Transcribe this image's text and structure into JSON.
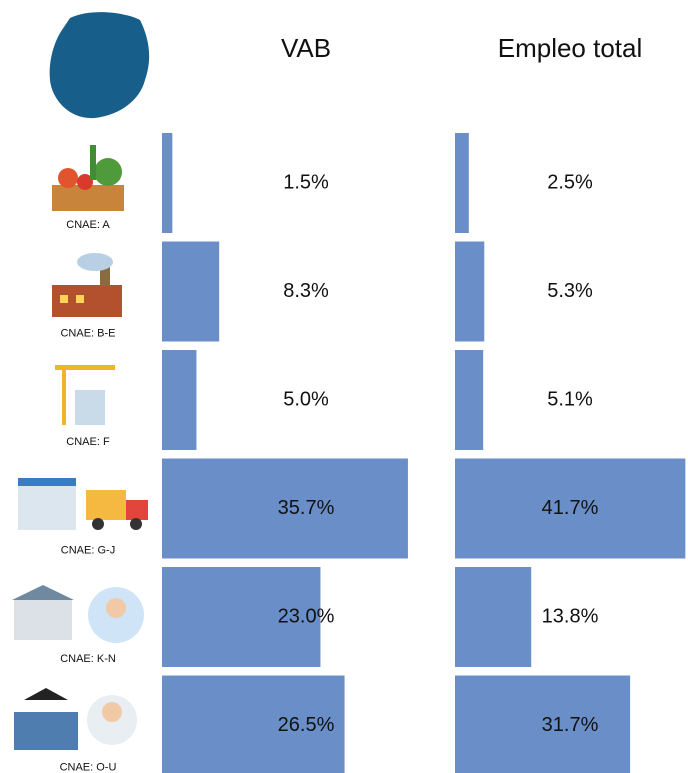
{
  "chart_data": {
    "type": "bar",
    "orientation": "horizontal",
    "color": "#6a8fc8",
    "categories": [
      "CNAE: A",
      "CNAE: B-E",
      "CNAE: F",
      "CNAE: G-J",
      "CNAE: K-N",
      "CNAE: O-U"
    ],
    "series": [
      {
        "name": "VAB",
        "xlim": [
          0,
          36
        ],
        "values": [
          1.5,
          8.3,
          5.0,
          35.7,
          23.0,
          26.5
        ],
        "value_labels": [
          "1.5%",
          "8.3%",
          "5.0%",
          "35.7%",
          "23.0%",
          "26.5%"
        ]
      },
      {
        "name": "Empleo total",
        "xlim": [
          0,
          42
        ],
        "values": [
          2.5,
          5.3,
          5.1,
          41.7,
          13.8,
          31.7
        ],
        "value_labels": [
          "2.5%",
          "5.3%",
          "5.1%",
          "41.7%",
          "13.8%",
          "31.7%"
        ]
      }
    ]
  }
}
